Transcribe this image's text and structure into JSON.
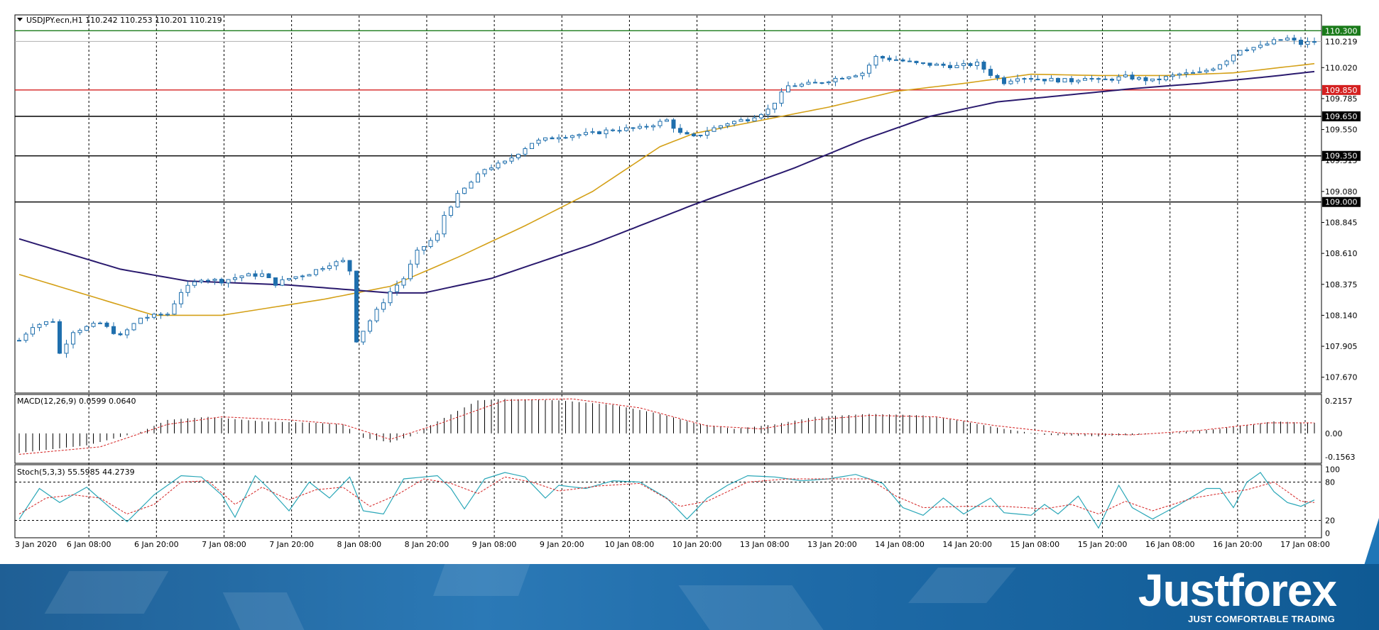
{
  "chart_data": {
    "type": "candlestick",
    "symbol_header": "USDJPY.ecn,H1  110.242 110.253 110.201 110.219",
    "x_tick_labels": [
      "3 Jan 2020",
      "6 Jan 08:00",
      "6 Jan 20:00",
      "7 Jan 08:00",
      "7 Jan 20:00",
      "8 Jan 08:00",
      "8 Jan 20:00",
      "9 Jan 08:00",
      "9 Jan 20:00",
      "10 Jan 08:00",
      "10 Jan 20:00",
      "13 Jan 08:00",
      "13 Jan 20:00",
      "14 Jan 08:00",
      "14 Jan 20:00",
      "15 Jan 08:00",
      "15 Jan 20:00",
      "16 Jan 08:00",
      "16 Jan 20:00",
      "17 Jan 08:00"
    ],
    "price_axis": {
      "ylim": [
        107.55,
        110.42
      ],
      "ticks": [
        "110.020",
        "109.785",
        "109.550",
        "109.315",
        "109.080",
        "108.845",
        "108.610",
        "108.375",
        "108.140",
        "107.905",
        "107.670"
      ],
      "current_price": "110.219"
    },
    "levels": [
      {
        "value": "110.300",
        "color": "#1a7a1a"
      },
      {
        "value": "109.850",
        "color": "#d42020"
      },
      {
        "value": "109.650",
        "color": "#000000"
      },
      {
        "value": "109.350",
        "color": "#000000"
      },
      {
        "value": "109.000",
        "color": "#000000"
      }
    ],
    "colors": {
      "bull": "#ffffff",
      "bear": "#1f6fad",
      "wick": "#1f6fad",
      "ma_fast": "#d4a017",
      "ma_slow": "#2a1a6e",
      "macd_signal": "#d42020",
      "stoch_main": "#2aa7b8",
      "stoch_signal": "#d42020"
    },
    "candle_path": [
      [
        0,
        107.95
      ],
      [
        2,
        108.06
      ],
      [
        5,
        108.1
      ],
      [
        6,
        107.85
      ],
      [
        8,
        108.02
      ],
      [
        12,
        108.08
      ],
      [
        15,
        107.98
      ],
      [
        18,
        108.12
      ],
      [
        22,
        108.15
      ],
      [
        24,
        108.32
      ],
      [
        27,
        108.42
      ],
      [
        30,
        108.4
      ],
      [
        33,
        108.44
      ],
      [
        36,
        108.45
      ],
      [
        38,
        108.38
      ],
      [
        40,
        108.42
      ],
      [
        43,
        108.46
      ],
      [
        46,
        108.53
      ],
      [
        48,
        108.55
      ],
      [
        49,
        108.48
      ],
      [
        50,
        107.95
      ],
      [
        52,
        108.1
      ],
      [
        55,
        108.32
      ],
      [
        57,
        108.42
      ],
      [
        59,
        108.62
      ],
      [
        62,
        108.75
      ],
      [
        63,
        108.9
      ],
      [
        65,
        109.05
      ],
      [
        67,
        109.15
      ],
      [
        69,
        109.25
      ],
      [
        72,
        109.3
      ],
      [
        76,
        109.45
      ],
      [
        80,
        109.5
      ],
      [
        85,
        109.52
      ],
      [
        88,
        109.55
      ],
      [
        92,
        109.56
      ],
      [
        96,
        109.62
      ],
      [
        98,
        109.52
      ],
      [
        100,
        109.49
      ],
      [
        102,
        109.54
      ],
      [
        105,
        109.6
      ],
      [
        108,
        109.63
      ],
      [
        111,
        109.7
      ],
      [
        114,
        109.88
      ],
      [
        118,
        109.9
      ],
      [
        122,
        109.95
      ],
      [
        125,
        109.98
      ],
      [
        127,
        110.1
      ],
      [
        130,
        110.08
      ],
      [
        133,
        110.05
      ],
      [
        136,
        110.04
      ],
      [
        139,
        110.03
      ],
      [
        142,
        110.05
      ],
      [
        144,
        109.97
      ],
      [
        146,
        109.91
      ],
      [
        148,
        109.95
      ],
      [
        152,
        109.93
      ],
      [
        156,
        109.92
      ],
      [
        158,
        109.95
      ],
      [
        160,
        109.92
      ],
      [
        164,
        109.95
      ],
      [
        168,
        109.92
      ],
      [
        172,
        109.97
      ],
      [
        175,
        109.98
      ],
      [
        177,
        110.02
      ],
      [
        179,
        110.08
      ],
      [
        181,
        110.16
      ],
      [
        184,
        110.18
      ],
      [
        186,
        110.22
      ],
      [
        188,
        110.24
      ],
      [
        189,
        110.22
      ],
      [
        190,
        110.2
      ],
      [
        192,
        110.22
      ]
    ],
    "ma_fast_points": [
      [
        0,
        108.45
      ],
      [
        20,
        108.14
      ],
      [
        30,
        108.14
      ],
      [
        45,
        108.26
      ],
      [
        55,
        108.36
      ],
      [
        65,
        108.58
      ],
      [
        75,
        108.82
      ],
      [
        85,
        109.08
      ],
      [
        95,
        109.42
      ],
      [
        100,
        109.52
      ],
      [
        110,
        109.62
      ],
      [
        120,
        109.72
      ],
      [
        130,
        109.84
      ],
      [
        140,
        109.9
      ],
      [
        150,
        109.97
      ],
      [
        160,
        109.96
      ],
      [
        170,
        109.96
      ],
      [
        180,
        109.98
      ],
      [
        192,
        110.05
      ]
    ],
    "ma_slow_points": [
      [
        0,
        108.72
      ],
      [
        15,
        108.49
      ],
      [
        25,
        108.4
      ],
      [
        40,
        108.37
      ],
      [
        55,
        108.31
      ],
      [
        60,
        108.31
      ],
      [
        70,
        108.42
      ],
      [
        85,
        108.68
      ],
      [
        100,
        108.98
      ],
      [
        115,
        109.26
      ],
      [
        125,
        109.47
      ],
      [
        135,
        109.65
      ],
      [
        145,
        109.76
      ],
      [
        155,
        109.81
      ],
      [
        165,
        109.86
      ],
      [
        175,
        109.9
      ],
      [
        185,
        109.95
      ],
      [
        192,
        109.99
      ]
    ],
    "macd": {
      "label": "MACD(12,26,9) 0.0599 0.0640",
      "ylim": [
        -0.19,
        0.25
      ],
      "ticks": [
        "0.2157",
        "0.00",
        "-0.1563"
      ],
      "hist_points": [
        [
          0,
          -0.13
        ],
        [
          10,
          -0.08
        ],
        [
          18,
          0.01
        ],
        [
          22,
          0.09
        ],
        [
          28,
          0.11
        ],
        [
          36,
          0.08
        ],
        [
          44,
          0.07
        ],
        [
          48,
          0.06
        ],
        [
          51,
          -0.03
        ],
        [
          55,
          -0.06
        ],
        [
          58,
          -0.02
        ],
        [
          62,
          0.08
        ],
        [
          68,
          0.22
        ],
        [
          72,
          0.23
        ],
        [
          80,
          0.22
        ],
        [
          88,
          0.19
        ],
        [
          95,
          0.13
        ],
        [
          100,
          0.07
        ],
        [
          106,
          0.03
        ],
        [
          112,
          0.06
        ],
        [
          118,
          0.11
        ],
        [
          126,
          0.13
        ],
        [
          134,
          0.12
        ],
        [
          140,
          0.08
        ],
        [
          146,
          0.03
        ],
        [
          152,
          -0.01
        ],
        [
          160,
          -0.02
        ],
        [
          170,
          0.0
        ],
        [
          178,
          0.03
        ],
        [
          186,
          0.08
        ],
        [
          192,
          0.07
        ]
      ],
      "signal_points": [
        [
          0,
          -0.14
        ],
        [
          12,
          -0.09
        ],
        [
          22,
          0.06
        ],
        [
          30,
          0.11
        ],
        [
          40,
          0.09
        ],
        [
          48,
          0.06
        ],
        [
          55,
          -0.04
        ],
        [
          62,
          0.06
        ],
        [
          72,
          0.22
        ],
        [
          82,
          0.23
        ],
        [
          92,
          0.17
        ],
        [
          102,
          0.05
        ],
        [
          110,
          0.03
        ],
        [
          118,
          0.09
        ],
        [
          126,
          0.12
        ],
        [
          136,
          0.11
        ],
        [
          145,
          0.05
        ],
        [
          155,
          0.0
        ],
        [
          165,
          -0.01
        ],
        [
          175,
          0.02
        ],
        [
          185,
          0.07
        ],
        [
          192,
          0.07
        ]
      ]
    },
    "stochastic": {
      "label": "Stoch(5,3,3) 55.5985 44.2739",
      "ylim": [
        -5,
        105
      ],
      "ticks": [
        "100",
        "80",
        "20",
        "0"
      ],
      "main_points": [
        [
          0,
          22
        ],
        [
          3,
          70
        ],
        [
          6,
          48
        ],
        [
          10,
          72
        ],
        [
          14,
          35
        ],
        [
          16,
          18
        ],
        [
          20,
          60
        ],
        [
          24,
          90
        ],
        [
          27,
          88
        ],
        [
          30,
          60
        ],
        [
          32,
          25
        ],
        [
          35,
          90
        ],
        [
          37,
          70
        ],
        [
          40,
          35
        ],
        [
          43,
          80
        ],
        [
          46,
          55
        ],
        [
          49,
          88
        ],
        [
          51,
          35
        ],
        [
          54,
          30
        ],
        [
          57,
          85
        ],
        [
          60,
          88
        ],
        [
          62,
          90
        ],
        [
          64,
          70
        ],
        [
          66,
          38
        ],
        [
          69,
          85
        ],
        [
          72,
          95
        ],
        [
          75,
          88
        ],
        [
          78,
          55
        ],
        [
          80,
          75
        ],
        [
          84,
          70
        ],
        [
          88,
          82
        ],
        [
          92,
          80
        ],
        [
          96,
          55
        ],
        [
          99,
          22
        ],
        [
          102,
          55
        ],
        [
          105,
          75
        ],
        [
          108,
          90
        ],
        [
          112,
          88
        ],
        [
          116,
          82
        ],
        [
          120,
          85
        ],
        [
          124,
          92
        ],
        [
          128,
          78
        ],
        [
          131,
          40
        ],
        [
          134,
          28
        ],
        [
          137,
          55
        ],
        [
          140,
          30
        ],
        [
          144,
          55
        ],
        [
          146,
          32
        ],
        [
          150,
          28
        ],
        [
          152,
          45
        ],
        [
          154,
          30
        ],
        [
          157,
          58
        ],
        [
          160,
          8
        ],
        [
          163,
          75
        ],
        [
          165,
          40
        ],
        [
          168,
          22
        ],
        [
          172,
          45
        ],
        [
          176,
          70
        ],
        [
          178,
          70
        ],
        [
          180,
          40
        ],
        [
          182,
          80
        ],
        [
          184,
          95
        ],
        [
          186,
          65
        ],
        [
          188,
          48
        ],
        [
          190,
          42
        ],
        [
          192,
          52
        ]
      ],
      "signal_points": [
        [
          0,
          30
        ],
        [
          4,
          55
        ],
        [
          8,
          60
        ],
        [
          12,
          55
        ],
        [
          16,
          30
        ],
        [
          20,
          45
        ],
        [
          24,
          80
        ],
        [
          28,
          82
        ],
        [
          32,
          45
        ],
        [
          36,
          72
        ],
        [
          40,
          52
        ],
        [
          44,
          68
        ],
        [
          48,
          72
        ],
        [
          52,
          42
        ],
        [
          56,
          60
        ],
        [
          60,
          85
        ],
        [
          64,
          78
        ],
        [
          68,
          62
        ],
        [
          72,
          88
        ],
        [
          76,
          80
        ],
        [
          80,
          66
        ],
        [
          86,
          74
        ],
        [
          92,
          78
        ],
        [
          98,
          42
        ],
        [
          102,
          50
        ],
        [
          108,
          80
        ],
        [
          114,
          85
        ],
        [
          120,
          85
        ],
        [
          126,
          85
        ],
        [
          130,
          58
        ],
        [
          134,
          40
        ],
        [
          140,
          42
        ],
        [
          146,
          42
        ],
        [
          152,
          38
        ],
        [
          156,
          45
        ],
        [
          160,
          30
        ],
        [
          164,
          50
        ],
        [
          168,
          35
        ],
        [
          174,
          55
        ],
        [
          178,
          62
        ],
        [
          182,
          68
        ],
        [
          186,
          80
        ],
        [
          190,
          50
        ],
        [
          192,
          48
        ]
      ]
    }
  },
  "branding": {
    "logo_text": "Justforex",
    "tagline": "JUST COMFORTABLE TRADING"
  }
}
